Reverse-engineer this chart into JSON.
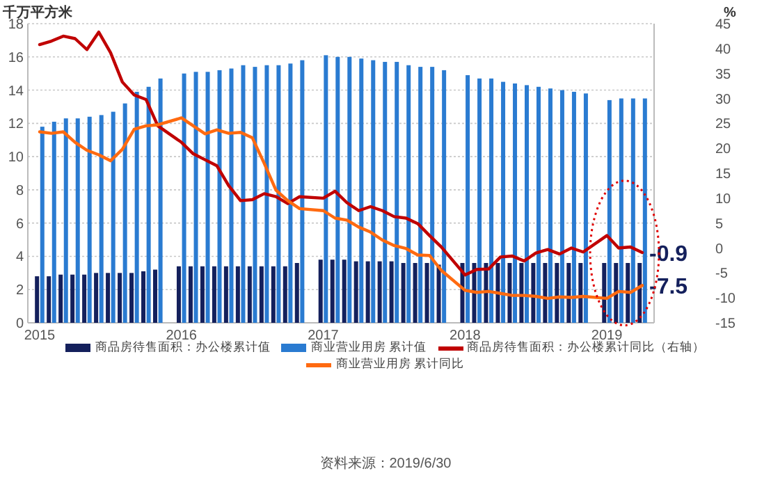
{
  "chart_data": {
    "type": "bar",
    "ylabel": "千万平方米",
    "y2label": "%",
    "x": [
      "2015-02",
      "2015-03",
      "2015-04",
      "2015-05",
      "2015-06",
      "2015-07",
      "2015-08",
      "2015-09",
      "2015-10",
      "2015-11",
      "2015-12",
      "2016-02",
      "2016-03",
      "2016-04",
      "2016-05",
      "2016-06",
      "2016-07",
      "2016-08",
      "2016-09",
      "2016-10",
      "2016-11",
      "2016-12",
      "2017-02",
      "2017-03",
      "2017-04",
      "2017-05",
      "2017-06",
      "2017-07",
      "2017-08",
      "2017-09",
      "2017-10",
      "2017-11",
      "2017-12",
      "2018-02",
      "2018-03",
      "2018-04",
      "2018-05",
      "2018-06",
      "2018-07",
      "2018-08",
      "2018-09",
      "2018-10",
      "2018-11",
      "2018-12",
      "2019-02",
      "2019-03",
      "2019-04",
      "2019-05"
    ],
    "xlim": [
      "2015-01",
      "2019-06"
    ],
    "xticks": [
      {
        "value": "2015-02",
        "label": "2015"
      },
      {
        "value": "2016-02",
        "label": "2016"
      },
      {
        "value": "2017-02",
        "label": "2017"
      },
      {
        "value": "2018-02",
        "label": "2018"
      },
      {
        "value": "2019-02",
        "label": "2019"
      }
    ],
    "ylim": [
      0,
      18
    ],
    "yticks": [
      0,
      2,
      4,
      6,
      8,
      10,
      12,
      14,
      16,
      18
    ],
    "y2lim": [
      -15,
      45
    ],
    "y2ticks": [
      -15,
      -10,
      -5,
      0,
      5,
      10,
      15,
      20,
      25,
      30,
      35,
      40,
      45
    ],
    "grid": "y",
    "legend": "bottom",
    "series": [
      {
        "name": "商品房待售面积：办公楼累计值",
        "color": "#14205c",
        "values": [
          2.8,
          2.8,
          2.9,
          2.9,
          2.9,
          3.0,
          3.0,
          3.0,
          3.0,
          3.1,
          3.2,
          3.4,
          3.4,
          3.4,
          3.4,
          3.4,
          3.4,
          3.4,
          3.4,
          3.4,
          3.4,
          3.6,
          3.8,
          3.8,
          3.8,
          3.7,
          3.7,
          3.7,
          3.7,
          3.6,
          3.6,
          3.6,
          3.5,
          3.6,
          3.6,
          3.6,
          3.6,
          3.6,
          3.6,
          3.6,
          3.6,
          3.6,
          3.6,
          3.6,
          3.6,
          3.6,
          3.6,
          3.6
        ]
      },
      {
        "name": "商业营业用房 累计值",
        "color": "#2a7bd1",
        "values": [
          11.8,
          12.1,
          12.3,
          12.3,
          12.4,
          12.5,
          12.7,
          13.2,
          13.9,
          14.2,
          14.7,
          15.0,
          15.1,
          15.1,
          15.2,
          15.3,
          15.5,
          15.4,
          15.5,
          15.5,
          15.6,
          15.8,
          16.1,
          16.0,
          16.0,
          15.9,
          15.8,
          15.7,
          15.7,
          15.5,
          15.4,
          15.4,
          15.2,
          14.9,
          14.7,
          14.7,
          14.5,
          14.4,
          14.3,
          14.2,
          14.1,
          14.0,
          13.9,
          13.8,
          13.4,
          13.5,
          13.5,
          13.5
        ]
      },
      {
        "name": "商品房待售面积：办公楼累计同比（右轴）",
        "type": "line",
        "axis": "y2",
        "color": "#c00000",
        "values": [
          40.8,
          41.5,
          42.5,
          42.0,
          39.8,
          43.3,
          39.2,
          33.3,
          30.7,
          29.8,
          24.5,
          21.2,
          18.9,
          17.7,
          16.5,
          12.5,
          9.5,
          9.7,
          10.9,
          10.3,
          8.9,
          10.3,
          10.0,
          11.4,
          9.1,
          7.5,
          8.3,
          7.5,
          6.3,
          6.0,
          4.9,
          2.5,
          0.2,
          -5.4,
          -4.3,
          -4.2,
          -1.8,
          -1.6,
          -2.6,
          -1.0,
          -0.3,
          -1.2,
          0.0,
          -0.8,
          2.5,
          0.0,
          0.2,
          -0.9
        ],
        "value_labels": [
          null,
          null,
          null,
          null,
          null,
          null,
          null,
          null,
          null,
          null,
          null,
          null,
          null,
          null,
          null,
          null,
          null,
          null,
          null,
          null,
          null,
          null,
          null,
          null,
          null,
          null,
          null,
          null,
          null,
          null,
          null,
          null,
          null,
          null,
          null,
          null,
          null,
          null,
          null,
          null,
          null,
          null,
          null,
          null,
          null,
          null,
          null,
          "-0.9"
        ]
      },
      {
        "name": "商业营业用房 累计同比",
        "type": "line",
        "axis": "y2",
        "color": "#ff6a10",
        "values": [
          23.3,
          23.0,
          23.3,
          21.2,
          19.6,
          18.7,
          17.5,
          19.8,
          23.8,
          24.5,
          24.7,
          26.1,
          24.5,
          22.9,
          23.7,
          23.0,
          23.2,
          22.1,
          17.0,
          11.6,
          9.5,
          7.9,
          7.5,
          6.0,
          5.6,
          4.2,
          3.2,
          1.6,
          0.5,
          -0.1,
          -1.4,
          -1.5,
          -4.5,
          -8.5,
          -8.9,
          -8.7,
          -9.1,
          -9.5,
          -9.5,
          -9.7,
          -10.1,
          -9.8,
          -9.9,
          -9.7,
          -10.1,
          -8.7,
          -8.9,
          -7.5
        ],
        "value_labels": [
          null,
          null,
          null,
          null,
          null,
          null,
          null,
          null,
          null,
          null,
          null,
          null,
          null,
          null,
          null,
          null,
          null,
          null,
          null,
          null,
          null,
          null,
          null,
          null,
          null,
          null,
          null,
          null,
          null,
          null,
          null,
          null,
          null,
          null,
          null,
          null,
          null,
          null,
          null,
          null,
          null,
          null,
          null,
          null,
          null,
          null,
          null,
          "-7.5"
        ]
      }
    ],
    "annotations": [
      "资料来源：2019/6/30"
    ]
  }
}
